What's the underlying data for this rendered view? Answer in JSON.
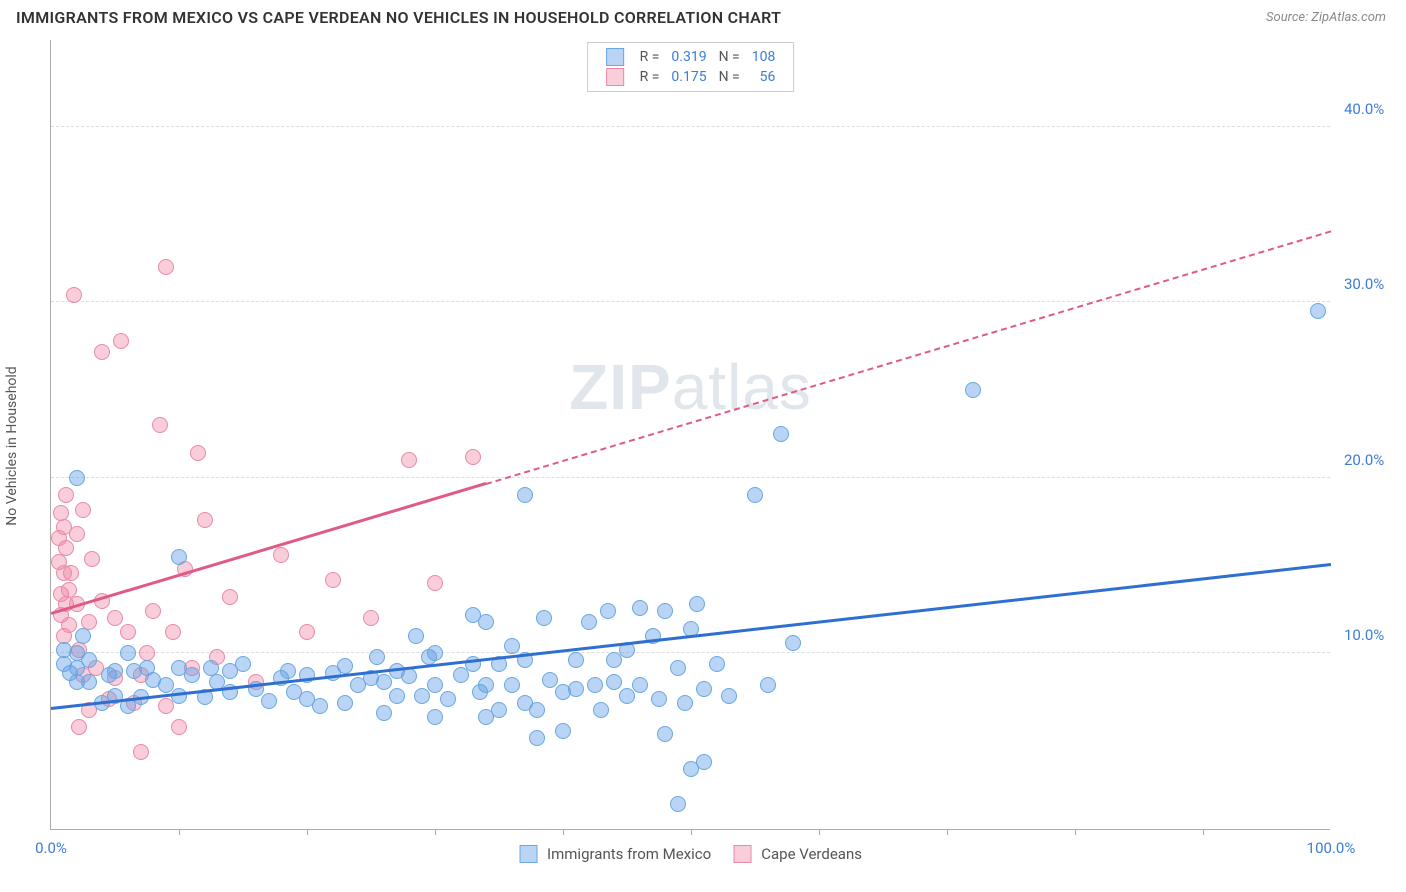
{
  "header": {
    "title": "IMMIGRANTS FROM MEXICO VS CAPE VERDEAN NO VEHICLES IN HOUSEHOLD CORRELATION CHART",
    "source": "Source: ZipAtlas.com"
  },
  "ylabel": "No Vehicles in Household",
  "watermark_parts": [
    "ZIP",
    "atlas"
  ],
  "axes": {
    "xlim": [
      0,
      100
    ],
    "ylim": [
      0,
      45
    ],
    "x_tick_step": 10,
    "y_ticks": [
      10,
      20,
      30,
      40
    ],
    "x_labels_shown": [
      {
        "v": 0,
        "t": "0.0%"
      },
      {
        "v": 100,
        "t": "100.0%"
      }
    ],
    "y_labels_shown": [
      {
        "v": 10,
        "t": "10.0%"
      },
      {
        "v": 20,
        "t": "20.0%"
      },
      {
        "v": 30,
        "t": "30.0%"
      },
      {
        "v": 40,
        "t": "40.0%"
      }
    ],
    "axis_label_color": "#3b7dd8",
    "grid_color": "#dddddd"
  },
  "series_a": {
    "name": "Immigrants from Mexico",
    "color_fill": "rgba(100,160,230,0.45)",
    "color_stroke": "#6aa7e0",
    "trend_color": "#2f6fd0",
    "r_label": "R =",
    "r_value": "0.319",
    "n_label": "N =",
    "n_value": "108",
    "radius": 8,
    "trend": {
      "x1": 0,
      "y1": 6.8,
      "x2": 100,
      "y2": 15.0,
      "solid_until_x": 100
    },
    "points": [
      [
        1,
        10.2
      ],
      [
        1,
        9.4
      ],
      [
        1.5,
        8.9
      ],
      [
        2,
        20
      ],
      [
        2,
        10
      ],
      [
        2,
        9.2
      ],
      [
        2,
        8.4
      ],
      [
        2.5,
        11
      ],
      [
        3,
        9.6
      ],
      [
        3,
        8.4
      ],
      [
        4,
        7.2
      ],
      [
        4.5,
        8.8
      ],
      [
        5,
        9
      ],
      [
        5,
        7.6
      ],
      [
        6,
        10
      ],
      [
        6.5,
        9
      ],
      [
        7,
        7.5
      ],
      [
        7.5,
        9.2
      ],
      [
        8,
        8.5
      ],
      [
        9,
        8.2
      ],
      [
        10,
        15.5
      ],
      [
        10,
        9.2
      ],
      [
        10,
        7.6
      ],
      [
        11,
        8.8
      ],
      [
        12,
        7.5
      ],
      [
        12.5,
        9.2
      ],
      [
        13,
        8.4
      ],
      [
        14,
        7.8
      ],
      [
        15,
        9.4
      ],
      [
        16,
        8
      ],
      [
        17,
        7.3
      ],
      [
        18,
        8.6
      ],
      [
        18.5,
        9
      ],
      [
        19,
        7.8
      ],
      [
        20,
        7.4
      ],
      [
        21,
        7
      ],
      [
        22,
        8.9
      ],
      [
        23,
        9.3
      ],
      [
        24,
        8.2
      ],
      [
        25,
        8.6
      ],
      [
        25.5,
        9.8
      ],
      [
        26,
        8.4
      ],
      [
        27,
        7.6
      ],
      [
        27,
        9
      ],
      [
        28,
        8.7
      ],
      [
        28.5,
        11
      ],
      [
        29,
        7.6
      ],
      [
        29.5,
        9.8
      ],
      [
        30,
        8.2
      ],
      [
        30,
        6.4
      ],
      [
        31,
        7.4
      ],
      [
        32,
        8.8
      ],
      [
        33,
        12.2
      ],
      [
        33,
        9.4
      ],
      [
        33.5,
        7.8
      ],
      [
        34,
        11.8
      ],
      [
        34,
        8.2
      ],
      [
        35,
        9.4
      ],
      [
        35,
        6.8
      ],
      [
        36,
        10.4
      ],
      [
        36,
        8.2
      ],
      [
        37,
        19
      ],
      [
        37,
        9.6
      ],
      [
        38,
        5.2
      ],
      [
        38,
        6.8
      ],
      [
        38.5,
        12
      ],
      [
        39,
        8.5
      ],
      [
        40,
        5.6
      ],
      [
        40,
        7.8
      ],
      [
        41,
        9.6
      ],
      [
        42,
        11.8
      ],
      [
        42.5,
        8.2
      ],
      [
        43,
        6.8
      ],
      [
        43.5,
        12.4
      ],
      [
        44,
        9.6
      ],
      [
        45,
        7.6
      ],
      [
        45,
        10.2
      ],
      [
        46,
        12.6
      ],
      [
        46,
        8.2
      ],
      [
        47,
        11
      ],
      [
        47.5,
        7.4
      ],
      [
        48,
        12.4
      ],
      [
        48,
        5.4
      ],
      [
        49,
        9.2
      ],
      [
        49,
        1.4
      ],
      [
        49.5,
        7.2
      ],
      [
        50,
        11.4
      ],
      [
        50,
        3.4
      ],
      [
        50.5,
        12.8
      ],
      [
        51,
        3.8
      ],
      [
        51,
        8
      ],
      [
        52,
        9.4
      ],
      [
        53,
        7.6
      ],
      [
        55,
        19
      ],
      [
        56,
        8.2
      ],
      [
        57,
        22.5
      ],
      [
        58,
        10.6
      ],
      [
        72,
        25
      ],
      [
        99,
        29.5
      ],
      [
        6,
        7
      ],
      [
        14,
        9
      ],
      [
        20,
        8.8
      ],
      [
        23,
        7.2
      ],
      [
        26,
        6.6
      ],
      [
        30,
        10
      ],
      [
        34,
        6.4
      ],
      [
        37,
        7.2
      ],
      [
        41,
        8
      ],
      [
        44,
        8.4
      ]
    ]
  },
  "series_b": {
    "name": "Cape Verdeans",
    "color_fill": "rgba(240,130,160,0.40)",
    "color_stroke": "#e88aa8",
    "trend_color": "#e05a87",
    "r_label": "R =",
    "r_value": "0.175",
    "n_label": "N =",
    "n_value": "56",
    "radius": 8,
    "trend": {
      "x1": 0,
      "y1": 12.2,
      "x2": 100,
      "y2": 34,
      "solid_until_x": 34
    },
    "points": [
      [
        0.6,
        16.6
      ],
      [
        0.6,
        15.2
      ],
      [
        0.8,
        13.4
      ],
      [
        0.8,
        12.2
      ],
      [
        0.8,
        18
      ],
      [
        1,
        17.2
      ],
      [
        1,
        14.6
      ],
      [
        1,
        11
      ],
      [
        1.2,
        16
      ],
      [
        1.2,
        12.8
      ],
      [
        1.2,
        19
      ],
      [
        1.4,
        11.6
      ],
      [
        1.4,
        13.6
      ],
      [
        1.6,
        14.6
      ],
      [
        1.8,
        30.4
      ],
      [
        2,
        12.8
      ],
      [
        2,
        16.8
      ],
      [
        2.2,
        10.2
      ],
      [
        2.2,
        5.8
      ],
      [
        2.5,
        18.2
      ],
      [
        2.5,
        8.8
      ],
      [
        3,
        11.8
      ],
      [
        3,
        6.8
      ],
      [
        3.2,
        15.4
      ],
      [
        3.5,
        9.2
      ],
      [
        4,
        13
      ],
      [
        4,
        27.2
      ],
      [
        4.5,
        7.4
      ],
      [
        5,
        8.6
      ],
      [
        5,
        12
      ],
      [
        5.5,
        27.8
      ],
      [
        6,
        11.2
      ],
      [
        6.5,
        7.2
      ],
      [
        7,
        8.8
      ],
      [
        7,
        4.4
      ],
      [
        7.5,
        10
      ],
      [
        8,
        12.4
      ],
      [
        8.5,
        23
      ],
      [
        9,
        7
      ],
      [
        9,
        32
      ],
      [
        9.5,
        11.2
      ],
      [
        10,
        5.8
      ],
      [
        10.5,
        14.8
      ],
      [
        11,
        9.2
      ],
      [
        11.5,
        21.4
      ],
      [
        12,
        17.6
      ],
      [
        13,
        9.8
      ],
      [
        14,
        13.2
      ],
      [
        16,
        8.4
      ],
      [
        18,
        15.6
      ],
      [
        20,
        11.2
      ],
      [
        22,
        14.2
      ],
      [
        25,
        12
      ],
      [
        28,
        21
      ],
      [
        30,
        14
      ],
      [
        33,
        21.2
      ]
    ]
  },
  "legend_bottom": {
    "items": [
      {
        "label": "Immigrants from Mexico",
        "fill": "rgba(100,160,230,0.45)",
        "stroke": "#6aa7e0"
      },
      {
        "label": "Cape Verdeans",
        "fill": "rgba(240,130,160,0.40)",
        "stroke": "#e88aa8"
      }
    ]
  }
}
